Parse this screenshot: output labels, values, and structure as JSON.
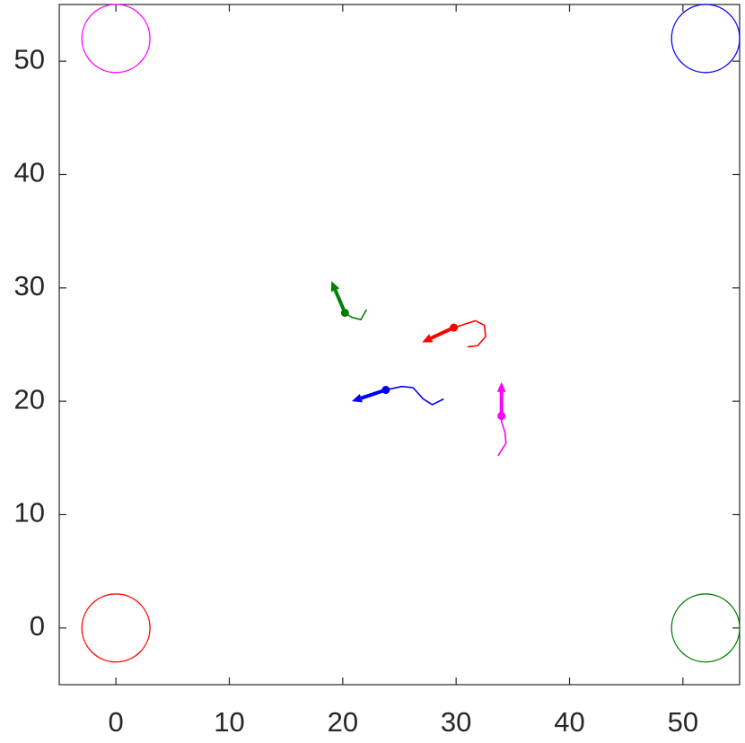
{
  "chart_data": {
    "type": "trajectory",
    "xlim": [
      -5,
      55
    ],
    "ylim": [
      -5,
      55
    ],
    "xticks": [
      0,
      10,
      20,
      30,
      40,
      50
    ],
    "yticks": [
      0,
      10,
      20,
      30,
      40,
      50
    ],
    "grid": false,
    "circles": [
      {
        "color": "#ff0000",
        "center": [
          0,
          0
        ],
        "radius": 3
      },
      {
        "color": "#ff00ff",
        "center": [
          0,
          52
        ],
        "radius": 3
      },
      {
        "color": "#0000ff",
        "center": [
          52,
          52
        ],
        "radius": 3
      },
      {
        "color": "#008000",
        "center": [
          52,
          0
        ],
        "radius": 3
      }
    ],
    "series": [
      {
        "color": "#ff0000",
        "x": [
          31.0,
          31.9,
          32.6,
          32.5,
          31.7,
          29.8
        ],
        "y": [
          24.8,
          24.9,
          25.7,
          26.7,
          27.1,
          26.5
        ],
        "position": [
          29.8,
          26.5
        ],
        "tip": [
          27.0,
          25.2
        ]
      },
      {
        "color": "#008000",
        "x": [
          22.1,
          21.6,
          20.8,
          20.2
        ],
        "y": [
          28.1,
          27.2,
          27.4,
          27.8
        ],
        "position": [
          20.2,
          27.8
        ],
        "tip": [
          19.0,
          30.6
        ]
      },
      {
        "color": "#0000ff",
        "x": [
          28.9,
          27.9,
          27.1,
          26.2,
          25.2,
          23.8
        ],
        "y": [
          20.2,
          19.7,
          20.2,
          21.2,
          21.3,
          21.0
        ],
        "position": [
          23.8,
          21.0
        ],
        "tip": [
          20.8,
          20.0
        ]
      },
      {
        "color": "#ff00ff",
        "x": [
          33.7,
          34.4,
          34.3,
          34.0,
          34.0
        ],
        "y": [
          15.2,
          16.3,
          17.3,
          18.2,
          18.7
        ],
        "position": [
          34.0,
          18.7
        ],
        "tip": [
          34.0,
          21.7
        ]
      }
    ]
  }
}
